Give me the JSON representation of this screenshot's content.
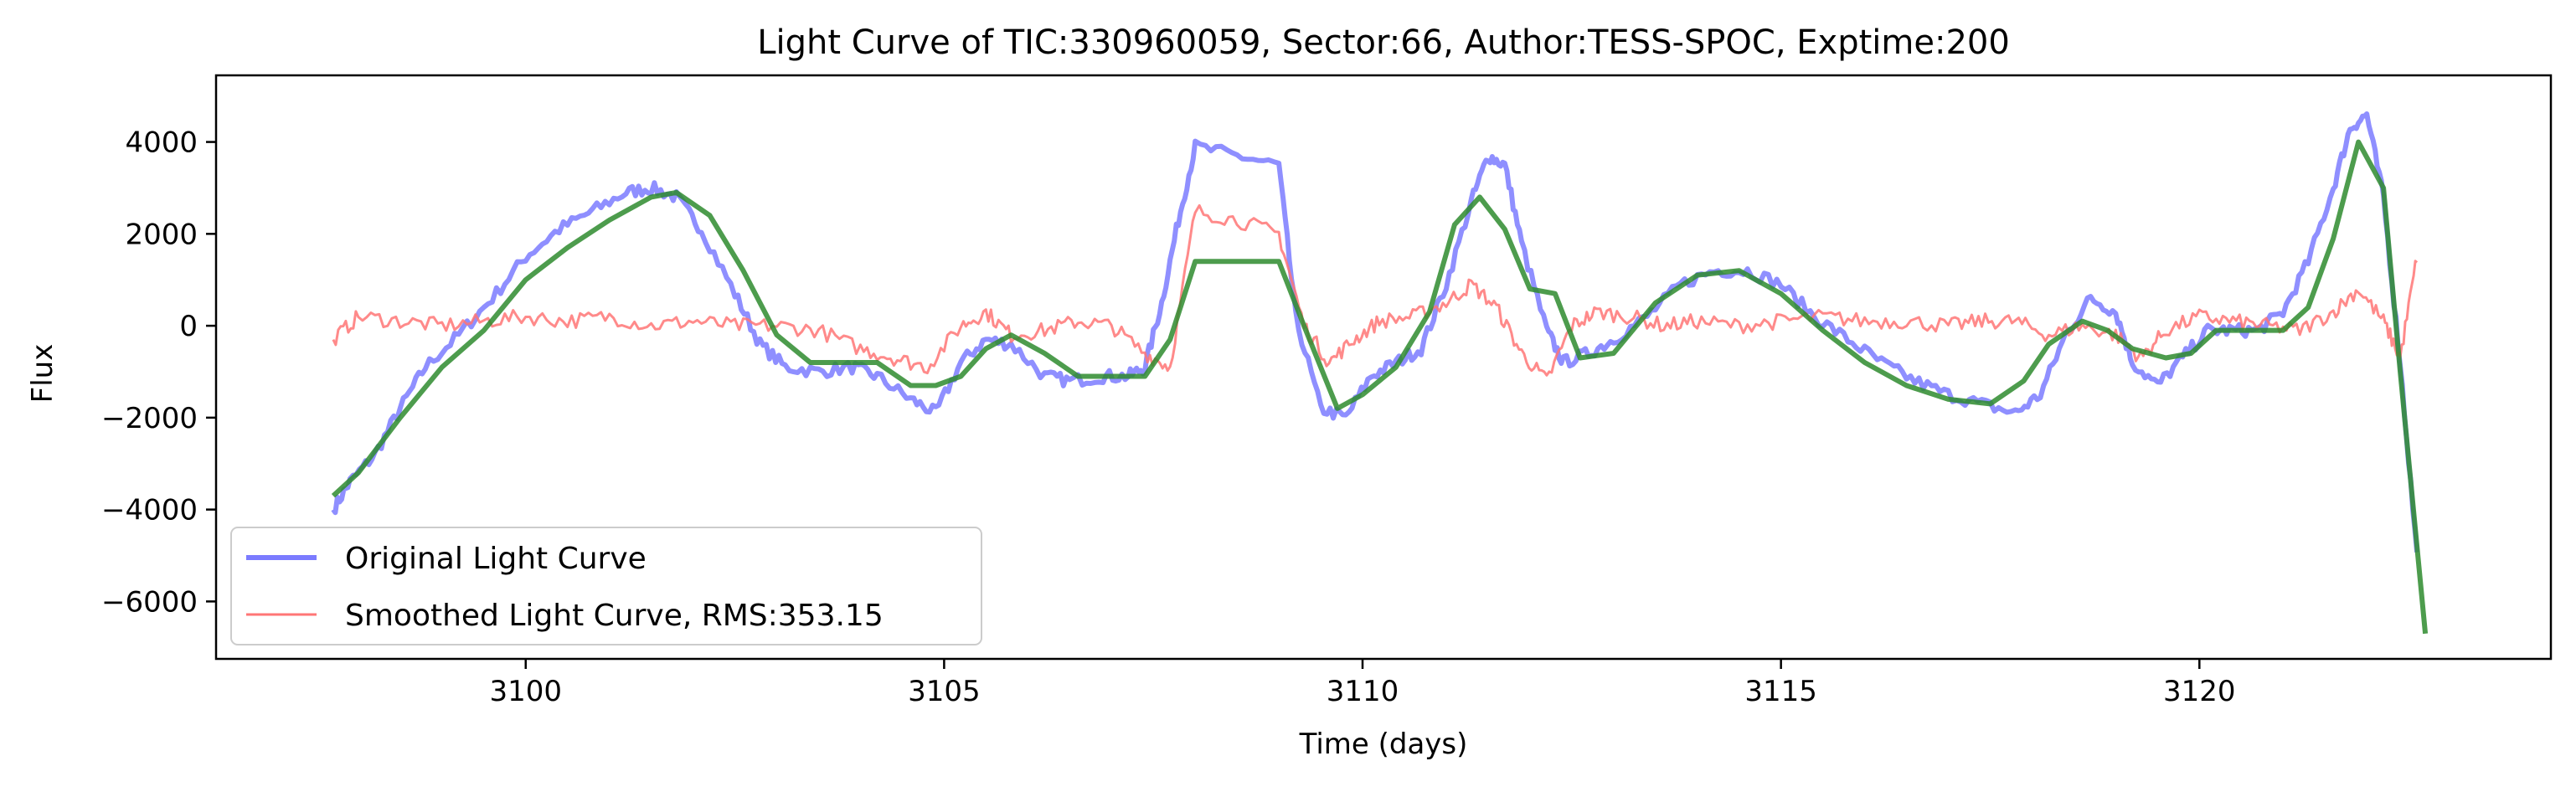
{
  "chart_data": {
    "type": "line",
    "title": "Light Curve of TIC:330960059, Sector:66, Author:TESS-SPOC, Exptime:200",
    "xlabel": "Time (days)",
    "ylabel": "Flux",
    "xlim": [
      3096.3,
      3124.2
    ],
    "ylim": [
      -7250,
      5450
    ],
    "x_ticks": [
      3100,
      3105,
      3110,
      3115,
      3120
    ],
    "y_ticks": [
      -6000,
      -4000,
      -2000,
      0,
      2000,
      4000
    ],
    "x_tick_labels": [
      "3100",
      "3105",
      "3110",
      "3115",
      "3120"
    ],
    "y_tick_labels": [
      "−6000",
      "−4000",
      "−2000",
      "0",
      "2000",
      "4000"
    ],
    "grid": false,
    "legend_position": "lower-left",
    "series": [
      {
        "name": "Original Light Curve",
        "color": "#7b7bff",
        "x": [
          3097.7,
          3097.9,
          3098.2,
          3098.5,
          3098.8,
          3099.2,
          3099.6,
          3100.0,
          3100.4,
          3100.8,
          3101.2,
          3101.5,
          3101.8,
          3102.1,
          3102.5,
          3102.8,
          3103.1,
          3103.5,
          3103.9,
          3104.2,
          3104.6,
          3104.9,
          3105.2,
          3105.5,
          3105.8,
          3106.2,
          3106.5,
          3106.9,
          3107.2,
          3107.4,
          3107.6,
          3107.8,
          3108.0,
          3108.5,
          3109.0,
          3109.2,
          3109.5,
          3109.8,
          3110.1,
          3110.4,
          3110.7,
          3111.0,
          3111.3,
          3111.5,
          3111.7,
          3111.9,
          3112.2,
          3112.4,
          3112.7,
          3113.0,
          3113.4,
          3113.8,
          3114.2,
          3114.6,
          3115.0,
          3115.4,
          3115.8,
          3116.2,
          3116.6,
          3117.0,
          3117.4,
          3117.8,
          3118.1,
          3118.4,
          3118.7,
          3119.0,
          3119.2,
          3119.5,
          3119.8,
          3120.1,
          3120.4,
          3120.7,
          3121.0,
          3121.3,
          3121.6,
          3121.8,
          3122.0,
          3122.2,
          3122.4,
          3122.6
        ],
        "y": [
          -4000,
          -3400,
          -2800,
          -1800,
          -900,
          -200,
          600,
          1500,
          2100,
          2500,
          2900,
          3000,
          2800,
          2100,
          700,
          -400,
          -900,
          -1000,
          -900,
          -1100,
          -1600,
          -1900,
          -800,
          -300,
          -400,
          -1100,
          -1200,
          -1100,
          -1100,
          -900,
          500,
          2300,
          3900,
          3700,
          3500,
          200,
          -1800,
          -2000,
          -1100,
          -800,
          -500,
          900,
          2700,
          3700,
          3500,
          1800,
          -100,
          -800,
          -600,
          -300,
          200,
          900,
          1200,
          1200,
          900,
          200,
          -300,
          -800,
          -1200,
          -1500,
          -1700,
          -1900,
          -1500,
          -200,
          600,
          300,
          -800,
          -1300,
          -700,
          -100,
          -100,
          -100,
          300,
          1400,
          3000,
          4300,
          4600,
          2800,
          -800,
          -5000
        ]
      },
      {
        "name": "Smoothed Light Curve, RMS:353.15",
        "color": "#ff7676",
        "x": [
          3097.7,
          3098.0,
          3098.5,
          3099.0,
          3099.5,
          3100.0,
          3100.5,
          3101.0,
          3101.5,
          3102.0,
          3102.5,
          3103.0,
          3103.5,
          3104.0,
          3104.4,
          3104.8,
          3105.2,
          3105.5,
          3105.8,
          3106.2,
          3106.6,
          3107.0,
          3107.4,
          3107.7,
          3108.0,
          3108.5,
          3109.0,
          3109.3,
          3109.6,
          3109.9,
          3110.2,
          3110.6,
          3111.0,
          3111.3,
          3111.6,
          3111.9,
          3112.2,
          3112.5,
          3112.8,
          3113.2,
          3113.6,
          3114.0,
          3114.5,
          3115.0,
          3115.5,
          3116.0,
          3116.5,
          3117.0,
          3117.4,
          3117.8,
          3118.2,
          3118.6,
          3119.0,
          3119.3,
          3119.6,
          3120.0,
          3120.4,
          3120.8,
          3121.2,
          3121.6,
          3121.9,
          3122.2,
          3122.4,
          3122.6
        ],
        "y": [
          -300,
          200,
          100,
          0,
          100,
          200,
          100,
          200,
          0,
          100,
          0,
          0,
          -100,
          -500,
          -700,
          -900,
          0,
          300,
          -200,
          -100,
          100,
          0,
          -600,
          -900,
          2500,
          2300,
          2000,
          0,
          -800,
          -300,
          100,
          200,
          500,
          900,
          400,
          -600,
          -1200,
          0,
          300,
          200,
          0,
          100,
          0,
          100,
          200,
          100,
          100,
          0,
          100,
          100,
          -200,
          0,
          -200,
          -700,
          -100,
          200,
          100,
          0,
          -100,
          300,
          800,
          100,
          -700,
          1500
        ]
      },
      {
        "name": "",
        "color": "#2e8b2e",
        "x": [
          3097.7,
          3098.0,
          3098.5,
          3099.0,
          3099.5,
          3100.0,
          3100.5,
          3101.0,
          3101.5,
          3101.8,
          3102.2,
          3102.6,
          3103.0,
          3103.4,
          3103.8,
          3104.2,
          3104.6,
          3104.9,
          3105.2,
          3105.5,
          3105.8,
          3106.2,
          3106.6,
          3107.0,
          3107.4,
          3107.7,
          3108.0,
          3108.5,
          3109.0,
          3109.3,
          3109.7,
          3110.0,
          3110.4,
          3110.8,
          3111.1,
          3111.4,
          3111.7,
          3112.0,
          3112.3,
          3112.6,
          3113.0,
          3113.5,
          3114.0,
          3114.5,
          3115.0,
          3115.5,
          3116.0,
          3116.5,
          3117.0,
          3117.5,
          3117.9,
          3118.2,
          3118.6,
          3118.9,
          3119.2,
          3119.6,
          3119.9,
          3120.2,
          3120.6,
          3121.0,
          3121.3,
          3121.6,
          3121.9,
          3122.2,
          3122.4,
          3122.7
        ],
        "y": [
          -3700,
          -3200,
          -2000,
          -900,
          -100,
          1000,
          1700,
          2300,
          2800,
          2900,
          2400,
          1200,
          -200,
          -800,
          -800,
          -800,
          -1300,
          -1300,
          -1100,
          -500,
          -200,
          -600,
          -1100,
          -1100,
          -1100,
          -300,
          1400,
          1400,
          1400,
          0,
          -1800,
          -1500,
          -900,
          300,
          2200,
          2800,
          2100,
          800,
          700,
          -700,
          -600,
          500,
          1100,
          1200,
          700,
          -100,
          -800,
          -1300,
          -1600,
          -1700,
          -1200,
          -400,
          100,
          -100,
          -500,
          -700,
          -600,
          -100,
          -100,
          -100,
          400,
          1900,
          4000,
          3000,
          -1000,
          -6700
        ]
      }
    ],
    "legend": [
      {
        "label": "Original Light Curve",
        "color": "#7b7bff"
      },
      {
        "label": "Smoothed Light Curve, RMS:353.15",
        "color": "#ff7676"
      }
    ]
  }
}
